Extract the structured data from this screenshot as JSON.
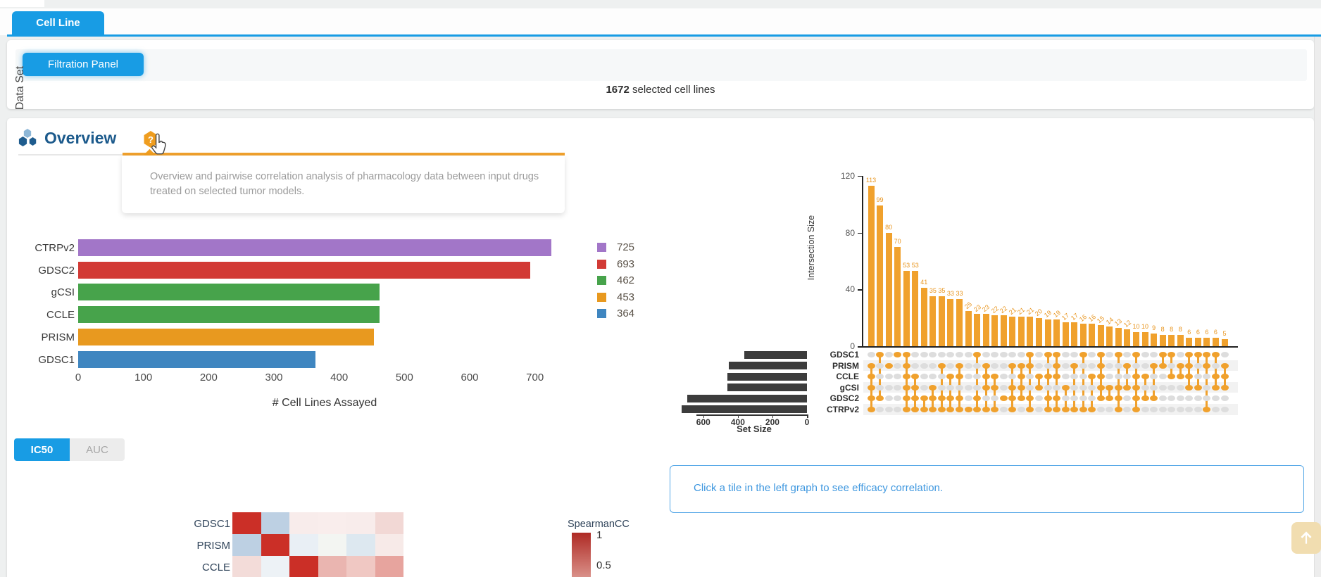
{
  "page": {
    "tab_label": "Cell Line",
    "filtration_button": "Filtration Panel",
    "selected_count": "1672",
    "selected_suffix": " selected cell lines",
    "section_title": "Overview",
    "help_glyph": "?",
    "help_tooltip": "Overview and pairwise correlation analysis of pharmacology data between input drugs treated on selected tumor models.",
    "hint_text": "Click a tile in the left graph to see efficacy correlation."
  },
  "metric_toggle": {
    "active": "IC50",
    "inactive": "AUC"
  },
  "colors": {
    "accent_blue": "#189ce4",
    "title_blue": "#1c5a8c",
    "upset_orange": "#f0a12d",
    "set_size_bar": "#3c3c3c",
    "hint_blue": "#3e97df"
  },
  "chart_data": [
    {
      "id": "cell-lines-assayed",
      "type": "bar",
      "orientation": "horizontal",
      "ylabel": "Data Set",
      "xlabel": "# Cell Lines Assayed",
      "categories": [
        "CTRPv2",
        "GDSC2",
        "gCSI",
        "CCLE",
        "PRISM",
        "GDSC1"
      ],
      "values": [
        725,
        693,
        462,
        462,
        453,
        364
      ],
      "bar_colors": [
        "#a276c8",
        "#d23a35",
        "#47a34b",
        "#47a34b",
        "#e8991f",
        "#3f86c0"
      ],
      "xticks": [
        0,
        100,
        200,
        300,
        400,
        500,
        600,
        700
      ],
      "xlim": [
        0,
        750
      ],
      "legend": [
        {
          "label": "725",
          "color": "#a276c8"
        },
        {
          "label": "693",
          "color": "#d23a35"
        },
        {
          "label": "462",
          "color": "#47a34b"
        },
        {
          "label": "453",
          "color": "#e8991f"
        },
        {
          "label": "364",
          "color": "#3f86c0"
        }
      ]
    },
    {
      "id": "dataset-overlap-upset",
      "type": "upset",
      "ylabel": "Intersection Size",
      "yticks": [
        0,
        40,
        80,
        120
      ],
      "ylim": [
        0,
        128
      ],
      "intersection_sizes": [
        113,
        99,
        80,
        70,
        53,
        53,
        41,
        35,
        35,
        33,
        33,
        25,
        23,
        23,
        22,
        22,
        21,
        21,
        21,
        20,
        19,
        19,
        17,
        17,
        16,
        16,
        15,
        14,
        13,
        12,
        10,
        10,
        9,
        8,
        8,
        8,
        6,
        6,
        6,
        6,
        5
      ],
      "memberships": [
        [
          1,
          2,
          3,
          4,
          5
        ],
        [
          0,
          4
        ],
        [
          1
        ],
        [
          0
        ],
        [
          0,
          1,
          2,
          3,
          4,
          5
        ],
        [
          2,
          3,
          4,
          5
        ],
        [
          4,
          5
        ],
        [
          3,
          4,
          5
        ],
        [
          1,
          4,
          5
        ],
        [
          2,
          4,
          5
        ],
        [
          1,
          2,
          4,
          5
        ],
        [
          5
        ],
        [
          0,
          4,
          5
        ],
        [
          1,
          2,
          3,
          5
        ],
        [
          2,
          3,
          5
        ],
        [
          4
        ],
        [
          1,
          3,
          4,
          5
        ],
        [
          1,
          2,
          3,
          4
        ],
        [
          0,
          1,
          4,
          5
        ],
        [
          2,
          3
        ],
        [
          0,
          2,
          4,
          5
        ],
        [
          0,
          1,
          2,
          4,
          5
        ],
        [
          3,
          5
        ],
        [
          1,
          5
        ],
        [
          0,
          5
        ],
        [
          2,
          5
        ],
        [
          0,
          1,
          2,
          3,
          4
        ],
        [
          3,
          4
        ],
        [
          0,
          3,
          4,
          5
        ],
        [
          1,
          3
        ],
        [
          0,
          2,
          3,
          4,
          5
        ],
        [
          2,
          4
        ],
        [
          1,
          4
        ],
        [
          0,
          1
        ],
        [
          0,
          2
        ],
        [
          1,
          2
        ],
        [
          0,
          1,
          2,
          3
        ],
        [
          0,
          3
        ],
        [
          0,
          1,
          5
        ],
        [
          0,
          2,
          3
        ],
        [
          1,
          2,
          3
        ]
      ],
      "sets": [
        {
          "name": "GDSC1",
          "size": 364
        },
        {
          "name": "PRISM",
          "size": 453
        },
        {
          "name": "CCLE",
          "size": 462
        },
        {
          "name": "gCSI",
          "size": 462
        },
        {
          "name": "GDSC2",
          "size": 693
        },
        {
          "name": "CTRPv2",
          "size": 725
        }
      ],
      "set_size_label": "Set Size",
      "set_size_ticks": [
        600,
        400,
        200,
        0
      ]
    },
    {
      "id": "efficacy-correlation-heatmap",
      "type": "heatmap",
      "legend_title": "SpearmanCC",
      "legend_ticks": [
        "1",
        "0.5"
      ],
      "rows": [
        {
          "label": "GDSC1",
          "cells": [
            "#cb2f27",
            "#bdd0e3",
            "#f8eceb",
            "#f9edec",
            "#f8eceb",
            "#f2d8d5"
          ]
        },
        {
          "label": "PRISM",
          "cells": [
            "#bdd0e3",
            "#cb2f27",
            "#e9eff5",
            "#f3f5f2",
            "#dde8f0",
            "#f7eae8"
          ]
        },
        {
          "label": "CCLE",
          "cells": [
            "#f3dcd9",
            "#edf2f6",
            "#cb2f27",
            "#eab5b0",
            "#f0c8c3",
            "#e7a49e"
          ]
        }
      ]
    }
  ]
}
